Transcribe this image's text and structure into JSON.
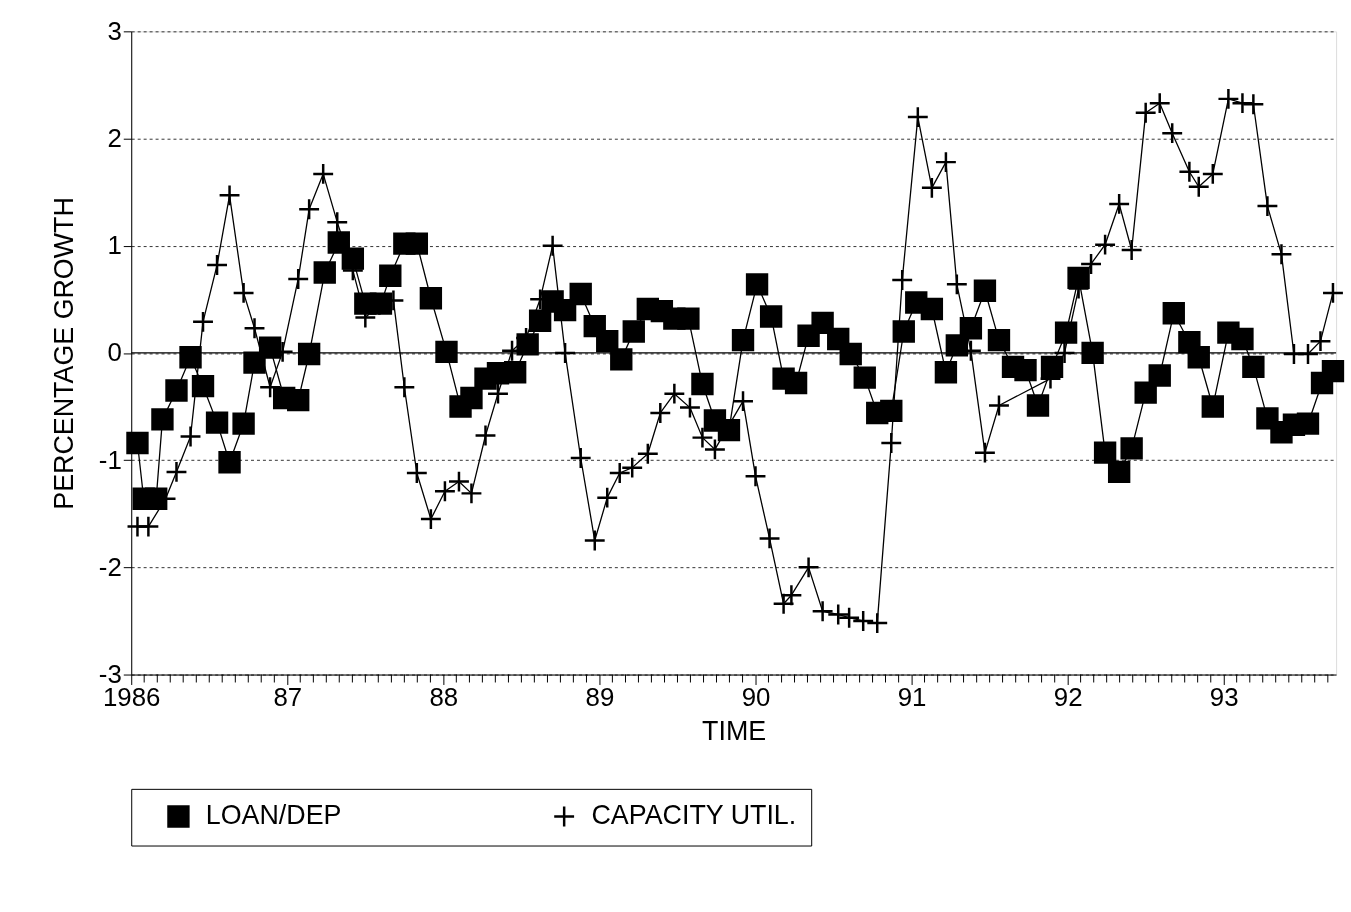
{
  "chart_data": {
    "type": "line",
    "xlabel": "TIME",
    "ylabel": "PERCENTAGE GROWTH",
    "xlim": [
      1986,
      1993.72
    ],
    "ylim": [
      -3,
      3
    ],
    "yticks": [
      -3,
      -2,
      -1,
      0,
      1,
      2,
      3
    ],
    "xticks": [
      {
        "value": 1986,
        "label": "1986"
      },
      {
        "value": 1986.083,
        "label": null
      },
      {
        "value": 1986.167,
        "label": null
      },
      {
        "value": 1986.25,
        "label": null
      },
      {
        "value": 1986.333,
        "label": null
      },
      {
        "value": 1986.417,
        "label": null
      },
      {
        "value": 1986.5,
        "label": null
      },
      {
        "value": 1986.583,
        "label": null
      },
      {
        "value": 1986.667,
        "label": null
      },
      {
        "value": 1986.75,
        "label": null
      },
      {
        "value": 1986.833,
        "label": null
      },
      {
        "value": 1986.917,
        "label": null
      },
      {
        "value": 1987,
        "label": "87"
      },
      {
        "value": 1987.083,
        "label": null
      },
      {
        "value": 1987.167,
        "label": null
      },
      {
        "value": 1987.25,
        "label": null
      },
      {
        "value": 1987.333,
        "label": null
      },
      {
        "value": 1987.417,
        "label": null
      },
      {
        "value": 1987.5,
        "label": null
      },
      {
        "value": 1987.583,
        "label": null
      },
      {
        "value": 1987.667,
        "label": null
      },
      {
        "value": 1987.75,
        "label": null
      },
      {
        "value": 1987.833,
        "label": null
      },
      {
        "value": 1987.917,
        "label": null
      },
      {
        "value": 1988,
        "label": "88"
      },
      {
        "value": 1988.083,
        "label": null
      },
      {
        "value": 1988.167,
        "label": null
      },
      {
        "value": 1988.25,
        "label": null
      },
      {
        "value": 1988.333,
        "label": null
      },
      {
        "value": 1988.417,
        "label": null
      },
      {
        "value": 1988.5,
        "label": null
      },
      {
        "value": 1988.583,
        "label": null
      },
      {
        "value": 1988.667,
        "label": null
      },
      {
        "value": 1988.75,
        "label": null
      },
      {
        "value": 1988.833,
        "label": null
      },
      {
        "value": 1988.917,
        "label": null
      },
      {
        "value": 1989,
        "label": "89"
      },
      {
        "value": 1989.083,
        "label": null
      },
      {
        "value": 1989.167,
        "label": null
      },
      {
        "value": 1989.25,
        "label": null
      },
      {
        "value": 1989.333,
        "label": null
      },
      {
        "value": 1989.417,
        "label": null
      },
      {
        "value": 1989.5,
        "label": null
      },
      {
        "value": 1989.583,
        "label": null
      },
      {
        "value": 1989.667,
        "label": null
      },
      {
        "value": 1989.75,
        "label": null
      },
      {
        "value": 1989.833,
        "label": null
      },
      {
        "value": 1989.917,
        "label": null
      },
      {
        "value": 1990,
        "label": "90"
      },
      {
        "value": 1990.083,
        "label": null
      },
      {
        "value": 1990.167,
        "label": null
      },
      {
        "value": 1990.25,
        "label": null
      },
      {
        "value": 1990.333,
        "label": null
      },
      {
        "value": 1990.417,
        "label": null
      },
      {
        "value": 1990.5,
        "label": null
      },
      {
        "value": 1990.583,
        "label": null
      },
      {
        "value": 1990.667,
        "label": null
      },
      {
        "value": 1990.75,
        "label": null
      },
      {
        "value": 1990.833,
        "label": null
      },
      {
        "value": 1990.917,
        "label": null
      },
      {
        "value": 1991,
        "label": "91"
      },
      {
        "value": 1991.083,
        "label": null
      },
      {
        "value": 1991.167,
        "label": null
      },
      {
        "value": 1991.25,
        "label": null
      },
      {
        "value": 1991.333,
        "label": null
      },
      {
        "value": 1991.417,
        "label": null
      },
      {
        "value": 1991.5,
        "label": null
      },
      {
        "value": 1991.583,
        "label": null
      },
      {
        "value": 1991.667,
        "label": null
      },
      {
        "value": 1991.75,
        "label": null
      },
      {
        "value": 1991.833,
        "label": null
      },
      {
        "value": 1991.917,
        "label": null
      },
      {
        "value": 1992,
        "label": "92"
      },
      {
        "value": 1992.083,
        "label": null
      },
      {
        "value": 1992.167,
        "label": null
      },
      {
        "value": 1992.25,
        "label": null
      },
      {
        "value": 1992.333,
        "label": null
      },
      {
        "value": 1992.417,
        "label": null
      },
      {
        "value": 1992.5,
        "label": null
      },
      {
        "value": 1992.583,
        "label": null
      },
      {
        "value": 1992.667,
        "label": null
      },
      {
        "value": 1992.75,
        "label": null
      },
      {
        "value": 1992.833,
        "label": null
      },
      {
        "value": 1992.917,
        "label": null
      },
      {
        "value": 1993,
        "label": "93"
      },
      {
        "value": 1993.083,
        "label": null
      },
      {
        "value": 1993.167,
        "label": null
      },
      {
        "value": 1993.25,
        "label": null
      },
      {
        "value": 1993.333,
        "label": null
      },
      {
        "value": 1993.417,
        "label": null
      },
      {
        "value": 1993.5,
        "label": null
      },
      {
        "value": 1993.583,
        "label": null
      },
      {
        "value": 1993.667,
        "label": null
      }
    ],
    "grid": "y",
    "legend": "bottom",
    "line_style": "solid",
    "ref_lines": [
      {
        "axis": "y",
        "value": 0,
        "color": "#000000"
      }
    ],
    "series": [
      {
        "name": "LOAN/DEP",
        "color": "#000000",
        "marker": "square",
        "x": [
          1986.04,
          1986.08,
          1986.16,
          1986.2,
          1986.29,
          1986.38,
          1986.46,
          1986.55,
          1986.63,
          1986.72,
          1986.79,
          1986.89,
          1986.98,
          1987.07,
          1987.14,
          1987.24,
          1987.33,
          1987.42,
          1987.5,
          1987.6,
          1987.66,
          1987.75,
          1987.83,
          1987.92,
          1988.02,
          1988.11,
          1988.18,
          1988.27,
          1988.35,
          1988.46,
          1988.54,
          1988.62,
          1988.7,
          1988.78,
          1988.88,
          1988.97,
          1989.05,
          1989.14,
          1989.22,
          1989.31,
          1989.4,
          1989.48,
          1989.57,
          1989.66,
          1989.74,
          1989.83,
          1989.92,
          1990.01,
          1990.1,
          1990.18,
          1990.26,
          1990.34,
          1990.43,
          1990.53,
          1990.61,
          1990.7,
          1990.78,
          1990.87,
          1990.95,
          1991.03,
          1991.13,
          1991.22,
          1991.29,
          1991.38,
          1991.47,
          1991.56,
          1991.65,
          1991.73,
          1991.81,
          1991.9,
          1991.99,
          1992.07,
          1992.16,
          1992.24,
          1992.33,
          1992.41,
          1992.5,
          1992.59,
          1992.68,
          1992.78,
          1992.84,
          1992.93,
          1993.03,
          1993.12,
          1993.19,
          1993.28,
          1993.37,
          1993.45,
          1993.54,
          1993.63,
          1993.7
        ],
        "values": [
          -0.84,
          -1.36,
          -1.36,
          -0.62,
          -0.35,
          -0.04,
          -0.31,
          -0.65,
          -1.02,
          -0.66,
          -0.09,
          0.05,
          -0.42,
          -0.44,
          -0.01,
          0.75,
          1.03,
          0.88,
          0.46,
          0.46,
          0.72,
          1.02,
          1.02,
          0.51,
          0.01,
          -0.5,
          -0.42,
          -0.24,
          -0.19,
          -0.18,
          0.08,
          0.3,
          0.48,
          0.4,
          0.55,
          0.25,
          0.11,
          -0.06,
          0.2,
          0.41,
          0.39,
          0.32,
          0.32,
          -0.29,
          -0.63,
          -0.72,
          0.12,
          0.64,
          0.34,
          -0.24,
          -0.28,
          0.16,
          0.28,
          0.13,
          -0.01,
          -0.23,
          -0.56,
          -0.54,
          0.2,
          0.47,
          0.41,
          -0.18,
          0.07,
          0.23,
          0.58,
          0.12,
          -0.13,
          -0.16,
          -0.49,
          -0.13,
          0.19,
          0.7,
          0.0,
          -0.93,
          -1.11,
          -0.89,
          -0.37,
          -0.21,
          0.37,
          0.1,
          -0.04,
          -0.5,
          0.19,
          0.13,
          -0.13,
          -0.61,
          -0.74,
          -0.67,
          -0.66,
          -0.28,
          -0.17
        ]
      },
      {
        "name": "CAPACITY UTIL.",
        "color": "#000000",
        "marker": "cross",
        "x": [
          1986.04,
          1986.11,
          1986.22,
          1986.29,
          1986.38,
          1986.46,
          1986.55,
          1986.63,
          1986.72,
          1986.79,
          1986.89,
          1986.97,
          1987.07,
          1987.14,
          1987.23,
          1987.32,
          1987.42,
          1987.5,
          1987.59,
          1987.68,
          1987.75,
          1987.83,
          1987.92,
          1988.01,
          1988.1,
          1988.18,
          1988.27,
          1988.35,
          1988.44,
          1988.53,
          1988.62,
          1988.7,
          1988.78,
          1988.88,
          1988.97,
          1989.05,
          1989.13,
          1989.21,
          1989.31,
          1989.39,
          1989.48,
          1989.58,
          1989.66,
          1989.74,
          1989.92,
          1990.0,
          1990.09,
          1990.18,
          1990.23,
          1990.34,
          1990.43,
          1990.53,
          1990.6,
          1990.69,
          1990.78,
          1990.87,
          1990.94,
          1991.04,
          1991.13,
          1991.22,
          1991.29,
          1991.38,
          1991.47,
          1991.56,
          1991.89,
          1991.98,
          1992.07,
          1992.15,
          1992.24,
          1992.33,
          1992.41,
          1992.5,
          1992.59,
          1992.67,
          1992.78,
          1992.84,
          1992.93,
          1993.03,
          1993.12,
          1993.19,
          1993.28,
          1993.37,
          1993.45,
          1993.54,
          1993.62,
          1993.7
        ],
        "values": [
          -1.62,
          -1.62,
          -1.36,
          -1.11,
          -0.78,
          0.29,
          0.82,
          1.47,
          0.56,
          0.23,
          -0.32,
          0.01,
          0.69,
          1.34,
          1.67,
          1.22,
          0.77,
          0.33,
          0.45,
          0.49,
          -0.32,
          -1.12,
          -1.55,
          -1.29,
          -1.2,
          -1.31,
          -0.77,
          -0.38,
          0.02,
          0.14,
          0.5,
          1.0,
          0.0,
          -0.98,
          -1.75,
          -1.35,
          -1.12,
          -1.07,
          -0.94,
          -0.56,
          -0.38,
          -0.51,
          -0.79,
          -0.9,
          -0.45,
          -1.15,
          -1.73,
          -2.34,
          -2.26,
          -2.0,
          -2.41,
          -2.44,
          -2.47,
          -2.5,
          -2.52,
          -0.84,
          0.68,
          2.2,
          1.54,
          1.78,
          0.64,
          0.02,
          -0.93,
          -0.49,
          -0.24,
          0.0,
          0.6,
          0.83,
          1.01,
          1.39,
          0.96,
          2.24,
          2.33,
          2.05,
          1.69,
          1.55,
          1.67,
          2.37,
          2.33,
          2.32,
          1.37,
          0.92,
          -0.01,
          -0.01,
          0.11,
          0.56
        ]
      }
    ]
  }
}
